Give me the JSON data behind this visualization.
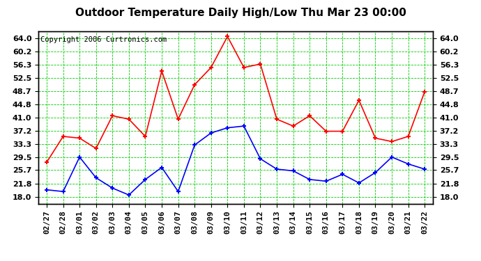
{
  "title": "Outdoor Temperature Daily High/Low Thu Mar 23 00:00",
  "copyright": "Copyright 2006 Curtronics.com",
  "dates": [
    "02/27",
    "02/28",
    "03/01",
    "03/02",
    "03/03",
    "03/04",
    "03/05",
    "03/06",
    "03/07",
    "03/08",
    "03/09",
    "03/10",
    "03/11",
    "03/12",
    "03/13",
    "03/14",
    "03/15",
    "03/16",
    "03/17",
    "03/18",
    "03/19",
    "03/20",
    "03/21",
    "03/22"
  ],
  "high_temps": [
    28.0,
    35.5,
    35.0,
    32.0,
    41.5,
    40.5,
    35.5,
    54.5,
    40.5,
    50.5,
    55.5,
    64.5,
    55.5,
    56.5,
    40.5,
    38.5,
    41.5,
    37.0,
    37.0,
    46.0,
    35.0,
    34.0,
    35.5,
    48.5
  ],
  "low_temps": [
    20.0,
    19.5,
    29.5,
    23.5,
    20.5,
    18.5,
    23.0,
    26.5,
    19.5,
    33.0,
    36.5,
    38.0,
    38.5,
    29.0,
    26.0,
    25.5,
    23.0,
    22.5,
    24.5,
    22.0,
    25.0,
    29.5,
    27.5,
    26.0
  ],
  "high_color": "#ff0000",
  "low_color": "#0000ff",
  "bg_color": "#ffffff",
  "grid_color": "#00cc00",
  "border_color": "#000000",
  "yticks": [
    18.0,
    21.8,
    25.7,
    29.5,
    33.3,
    37.2,
    41.0,
    44.8,
    48.7,
    52.5,
    56.3,
    60.2,
    64.0
  ],
  "ylim": [
    16.0,
    66.0
  ],
  "title_fontsize": 11,
  "tick_fontsize": 8,
  "copyright_fontsize": 7.5,
  "marker": "+",
  "markersize": 5,
  "markeredgewidth": 1.5,
  "linewidth": 1.2
}
